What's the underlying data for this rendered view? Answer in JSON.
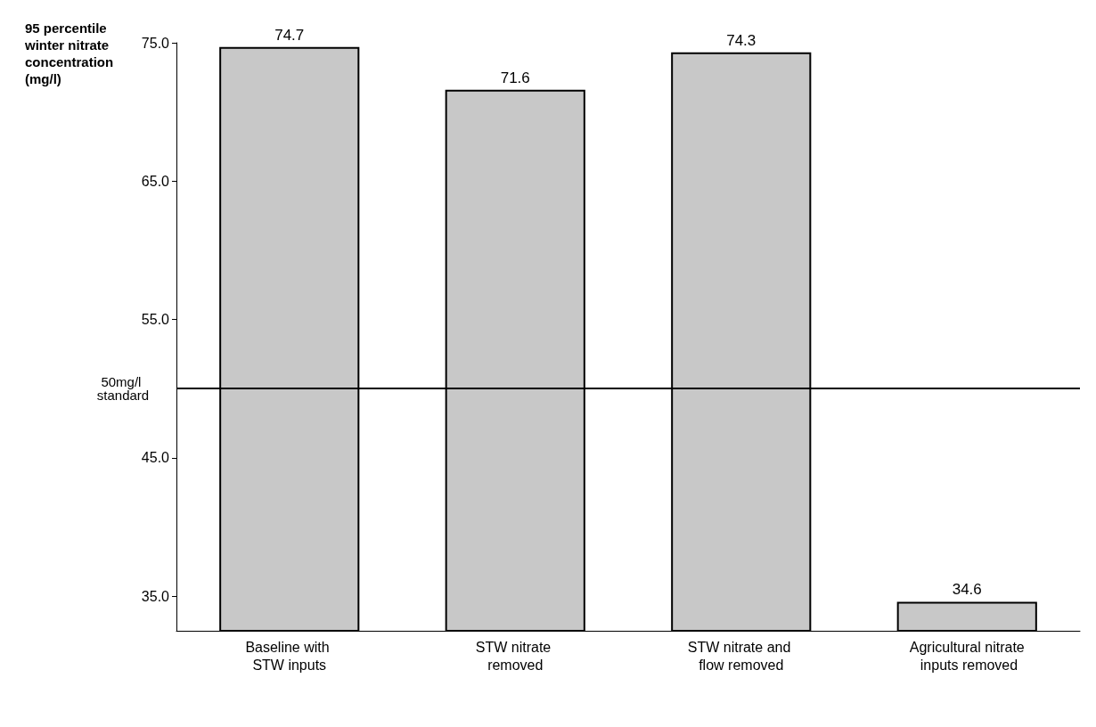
{
  "chart_data": {
    "type": "bar",
    "ylabel": "95 percentile winter nitrate concentration (mg/l)",
    "categories": [
      "Baseline with STW inputs",
      "STW nitrate removed",
      "STW nitrate and flow removed",
      "Agricultural nitrate inputs removed"
    ],
    "values": [
      74.7,
      71.6,
      74.3,
      34.6
    ],
    "color": "#c8c8c8",
    "ylim": [
      32.5,
      75
    ],
    "yticks": [
      {
        "value": 35,
        "label": "35.0"
      },
      {
        "value": 45,
        "label": "45.0"
      },
      {
        "value": 55,
        "label": "55.0"
      },
      {
        "value": 65,
        "label": "65.0"
      },
      {
        "value": 75,
        "label": "75.0"
      }
    ],
    "ref_lines": [
      {
        "axis": "y",
        "value": 50,
        "label": "50mg/l standard",
        "color": "#000000"
      }
    ],
    "data_labels": true,
    "grid": false
  }
}
